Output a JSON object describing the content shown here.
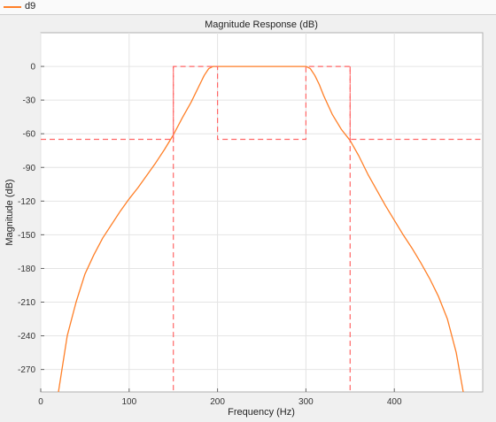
{
  "legend": {
    "label": "d9",
    "color": "#ff7f27"
  },
  "chart_data": {
    "type": "line",
    "title": "Magnitude Response (dB)",
    "xlabel": "Frequency (Hz)",
    "ylabel": "Magnitude (dB)",
    "xlim": [
      0,
      500
    ],
    "ylim": [
      -290,
      30
    ],
    "xticks": [
      0,
      100,
      200,
      300,
      400
    ],
    "yticks": [
      0,
      -30,
      -60,
      -90,
      -120,
      -150,
      -180,
      -210,
      -240,
      -270
    ],
    "grid": true,
    "series": [
      {
        "name": "d9",
        "color": "#ff7f27",
        "style": "solid",
        "x": [
          20,
          30,
          40,
          50,
          60,
          70,
          80,
          90,
          100,
          110,
          120,
          130,
          140,
          150,
          160,
          170,
          180,
          185,
          190,
          195,
          200,
          210,
          250,
          290,
          300,
          305,
          310,
          315,
          320,
          330,
          340,
          350,
          360,
          370,
          380,
          390,
          400,
          410,
          420,
          430,
          440,
          450,
          460,
          470,
          478
        ],
        "y": [
          -290,
          -240,
          -210,
          -185,
          -168,
          -153,
          -141,
          -129,
          -118,
          -108,
          -97,
          -86,
          -74,
          -61,
          -46,
          -32,
          -16,
          -8,
          -2,
          0,
          0,
          0,
          0,
          0,
          0,
          -2,
          -8,
          -16,
          -26,
          -43,
          -56,
          -66,
          -80,
          -96,
          -110,
          -124,
          -137,
          -150,
          -162,
          -175,
          -189,
          -205,
          -225,
          -255,
          -290
        ]
      },
      {
        "name": "",
        "color": "#ff6666",
        "style": "dashed",
        "x": [
          0,
          150,
          150,
          200,
          200,
          300,
          300,
          350,
          350,
          500
        ],
        "y": [
          -65,
          -65,
          0,
          0,
          -65,
          -65,
          0,
          0,
          -65,
          -65
        ]
      },
      {
        "name": "",
        "color": "#ff6666",
        "style": "dashed",
        "x": [
          150,
          150
        ],
        "y": [
          0,
          -290
        ]
      },
      {
        "name": "",
        "color": "#ff6666",
        "style": "dashed",
        "x": [
          350,
          350
        ],
        "y": [
          0,
          -290
        ]
      }
    ]
  }
}
